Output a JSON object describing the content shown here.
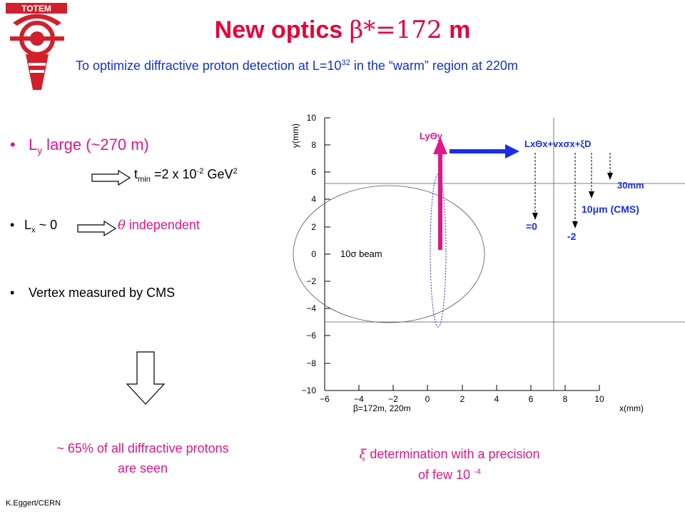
{
  "header": {
    "logo_text": "TOTEM",
    "title_prefix": "New optics ",
    "title_formula": "β*=172",
    "title_suffix": " m",
    "subtitle_prefix": "To optimize diffractive proton detection at L=10",
    "subtitle_exp": "32",
    "subtitle_suffix": " in the “warm” region at 220m"
  },
  "bullets": {
    "ly_label": "L",
    "ly_sub": "y",
    "ly_text": " large (~270 m)",
    "tmin_label": "t",
    "tmin_sub": "min",
    "tmin_mid": " =2 x 10",
    "tmin_exp": "-2",
    "tmin_unit": " GeV",
    "tmin_unit_exp": "2",
    "lx_label": "L",
    "lx_sub": "x",
    "lx_text": " ~ 0",
    "theta_symbol": "θ",
    "theta_text": " independent",
    "vertex_text": "Vertex measured by CMS",
    "bullet_char": "•"
  },
  "conclusion": {
    "line1": "~ 65% of all diffractive protons",
    "line2": "are seen"
  },
  "precision": {
    "xi_symbol": "ξ",
    "line1": " determination with a precision",
    "line2_prefix": "of few 10 ",
    "line2_exp": "-4"
  },
  "author": "K.Eggert/CERN",
  "plot": {
    "y_axis_label": "y(mm)",
    "x_axis_label": "x(mm)",
    "optics_label": "β=172m, 220m",
    "x_ticks": [
      "−6",
      "−4",
      "−2",
      "0",
      "2",
      "4",
      "6",
      "8",
      "10"
    ],
    "y_ticks": [
      "10",
      "8",
      "6",
      "4",
      "2",
      "0",
      "−2",
      "−4",
      "−6",
      "−8",
      "−10"
    ],
    "beam_label": "10σ beam",
    "ly_theta_label": "LyΘy",
    "formula_label": "LxΘx+vxσx+ξD",
    "label_30mm": "30mm",
    "label_10um": "10μm (CMS)",
    "label_eq0": "=0",
    "label_m2": "-2"
  },
  "colors": {
    "title": "#e6003a",
    "subtitle": "#1133cc",
    "accent_pink": "#e0168a",
    "arrow_blue": "#1a2ee8",
    "logo_red": "#d0202c"
  }
}
